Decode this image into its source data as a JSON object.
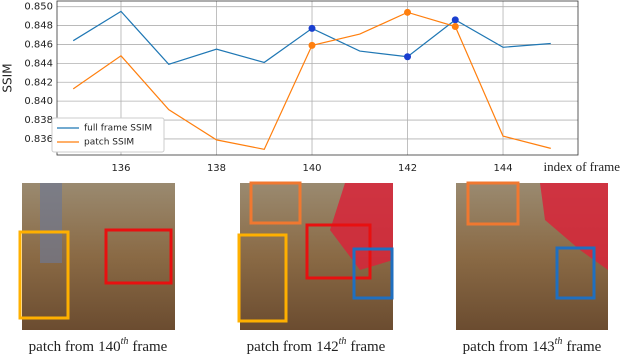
{
  "chart_data": {
    "type": "line",
    "y_label": "SSIM",
    "x_label": "index of frame",
    "x": [
      135,
      136,
      137,
      138,
      139,
      140,
      141,
      142,
      143,
      144,
      145
    ],
    "series": [
      {
        "name": "full frame SSIM",
        "color": "#1f77b4",
        "values": [
          0.8464,
          0.8495,
          0.8439,
          0.8455,
          0.8441,
          0.8477,
          0.8453,
          0.8447,
          0.8486,
          0.8457,
          0.8461
        ]
      },
      {
        "name": "patch SSIM",
        "color": "#ff7f0e",
        "values": [
          0.8413,
          0.8448,
          0.8391,
          0.8359,
          0.8349,
          0.8459,
          0.8471,
          0.8494,
          0.8479,
          0.8363,
          0.835
        ]
      }
    ],
    "highlight_x": [
      140,
      142,
      143
    ],
    "xlim": [
      134.66,
      145.57
    ],
    "ylim": [
      0.8343,
      0.8506
    ],
    "xticks": [
      136,
      138,
      140,
      142,
      144
    ],
    "yticks": [
      {
        "value": 0.85,
        "label": "0.850"
      },
      0.848,
      0.846,
      0.844,
      0.842,
      {
        "value": 0.84,
        "label": "0.840"
      },
      0.838,
      0.836
    ],
    "grid": true,
    "legend": "lower left"
  },
  "patches": [
    {
      "prefix": "patch from",
      "frame": "140",
      "sup": "th",
      "suffix": "frame"
    },
    {
      "prefix": "patch from",
      "frame": "142",
      "sup": "th",
      "suffix": "frame"
    },
    {
      "prefix": "patch from",
      "frame": "143",
      "sup": "th",
      "suffix": "frame"
    }
  ]
}
